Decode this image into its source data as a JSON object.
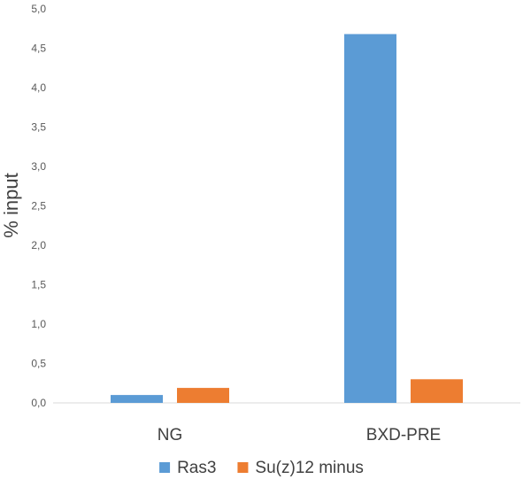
{
  "chart_data": {
    "type": "bar",
    "categories": [
      "NG",
      "BXD-PRE"
    ],
    "series": [
      {
        "name": "Ras3",
        "values": [
          0.1,
          4.68
        ],
        "color": "#5b9bd5"
      },
      {
        "name": "Su(z)12 minus",
        "values": [
          0.19,
          0.3
        ],
        "color": "#ed7d31"
      }
    ],
    "ylabel": "% input",
    "ylim": [
      0,
      5
    ],
    "yticks": [
      "0,0",
      "0,5",
      "1,0",
      "1,5",
      "2,0",
      "2,5",
      "3,0",
      "3,5",
      "4,0",
      "4,5",
      "5,0"
    ],
    "grid": false,
    "legend": "bottom"
  }
}
